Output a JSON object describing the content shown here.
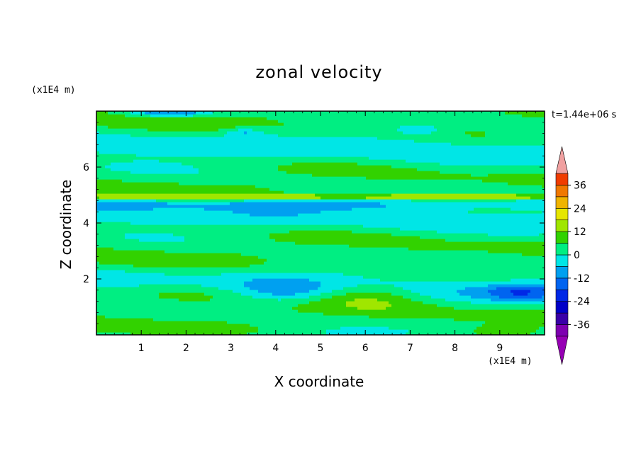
{
  "chart_data": {
    "type": "heatmap",
    "title": "zonal velocity",
    "xlabel": "X coordinate",
    "ylabel": "Z coordinate",
    "x_unit": "(x1E4 m)",
    "y_unit": "(x1E4 m)",
    "time_label": "t=1.44e+06 s",
    "xlim": [
      0,
      10
    ],
    "ylim": [
      0,
      8
    ],
    "x_ticks": [
      1,
      2,
      3,
      4,
      5,
      6,
      7,
      8,
      9
    ],
    "y_ticks": [
      2,
      4,
      6
    ],
    "colorbar": {
      "levels": [
        -42,
        -36,
        -30,
        -24,
        -18,
        -12,
        -6,
        0,
        6,
        12,
        18,
        24,
        30,
        36,
        42
      ],
      "tick_labels": [
        "36",
        "24",
        "12",
        "0",
        "-12",
        "-24",
        "-36"
      ],
      "tick_values": [
        36,
        24,
        12,
        0,
        -12,
        -24,
        -36
      ],
      "colors": [
        "#7e00b0",
        "#3a00a8",
        "#0000c8",
        "#0028e6",
        "#0064f0",
        "#00a0f0",
        "#00e6e6",
        "#00ee82",
        "#32d200",
        "#a0e600",
        "#e6e600",
        "#f0b400",
        "#f07800",
        "#f03c00",
        "#e60000"
      ],
      "over_color": "#f0a0a0",
      "under_color": "#9600b4"
    },
    "features": [
      {
        "z": 4.95,
        "value": 12,
        "description_label": ""
      }
    ]
  }
}
